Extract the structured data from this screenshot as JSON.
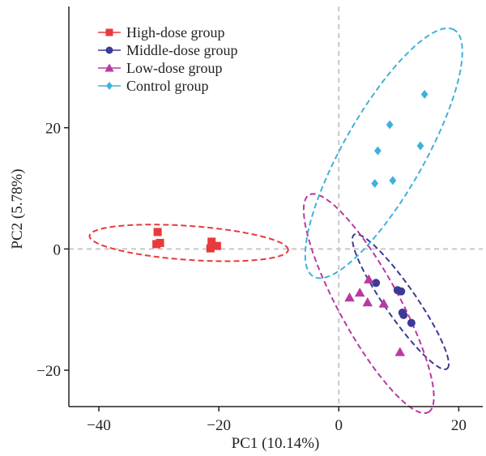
{
  "chart_data": {
    "type": "scatter",
    "title": "",
    "xlabel": "PC1 (10.14%)",
    "ylabel": "PC2 (5.78%)",
    "xlim": [
      -45,
      24
    ],
    "ylim": [
      -26,
      40
    ],
    "xticks": [
      -40,
      -20,
      0,
      20
    ],
    "yticks": [
      -20,
      0,
      20
    ],
    "xtick_labels": [
      "−40",
      "−20",
      "0",
      "20"
    ],
    "ytick_labels": [
      "−20",
      "0",
      "20"
    ],
    "grid": false,
    "zero_lines": true,
    "legend_position": "top-left",
    "series": [
      {
        "name": "High-dose group",
        "marker": "square",
        "color": "#e8393c",
        "points": [
          [
            -30.2,
            2.8
          ],
          [
            -30.4,
            0.8
          ],
          [
            -29.8,
            1.0
          ],
          [
            -21.2,
            1.2
          ],
          [
            -21.4,
            0.1
          ],
          [
            -20.3,
            0.5
          ]
        ],
        "ellipse": {
          "cx": -25,
          "cy": 1,
          "rx": 16.6,
          "ry": 2.8,
          "angle_deg": -4
        }
      },
      {
        "name": "Middle-dose group",
        "marker": "circle",
        "color": "#3c3a96",
        "points": [
          [
            6.2,
            -5.6
          ],
          [
            9.8,
            -6.8
          ],
          [
            10.4,
            -7.0
          ],
          [
            10.6,
            -10.5
          ],
          [
            10.8,
            -10.9
          ],
          [
            12.1,
            -12.2
          ]
        ],
        "ellipse": {
          "cx": 10.3,
          "cy": -8.7,
          "rx": 13.5,
          "ry": 2.6,
          "angle_deg": -55
        }
      },
      {
        "name": "Low-dose group",
        "marker": "triangle",
        "color": "#b83aa0",
        "points": [
          [
            1.8,
            -8.0
          ],
          [
            3.5,
            -7.2
          ],
          [
            5.0,
            -5.0
          ],
          [
            4.8,
            -8.8
          ],
          [
            7.5,
            -9.0
          ],
          [
            10.2,
            -17.0
          ]
        ],
        "ellipse": {
          "cx": 5,
          "cy": -9,
          "rx": 20.5,
          "ry": 5.0,
          "angle_deg": -61
        }
      },
      {
        "name": "Control group",
        "marker": "diamond",
        "color": "#3fb1dc",
        "points": [
          [
            14.3,
            25.5
          ],
          [
            8.5,
            20.5
          ],
          [
            6.5,
            16.2
          ],
          [
            13.6,
            17.0
          ],
          [
            6.0,
            10.8
          ],
          [
            9.0,
            11.3
          ]
        ],
        "ellipse": {
          "cx": 7.5,
          "cy": 15.8,
          "rx": 23.5,
          "ry": 6.7,
          "angle_deg": 60
        }
      }
    ]
  }
}
